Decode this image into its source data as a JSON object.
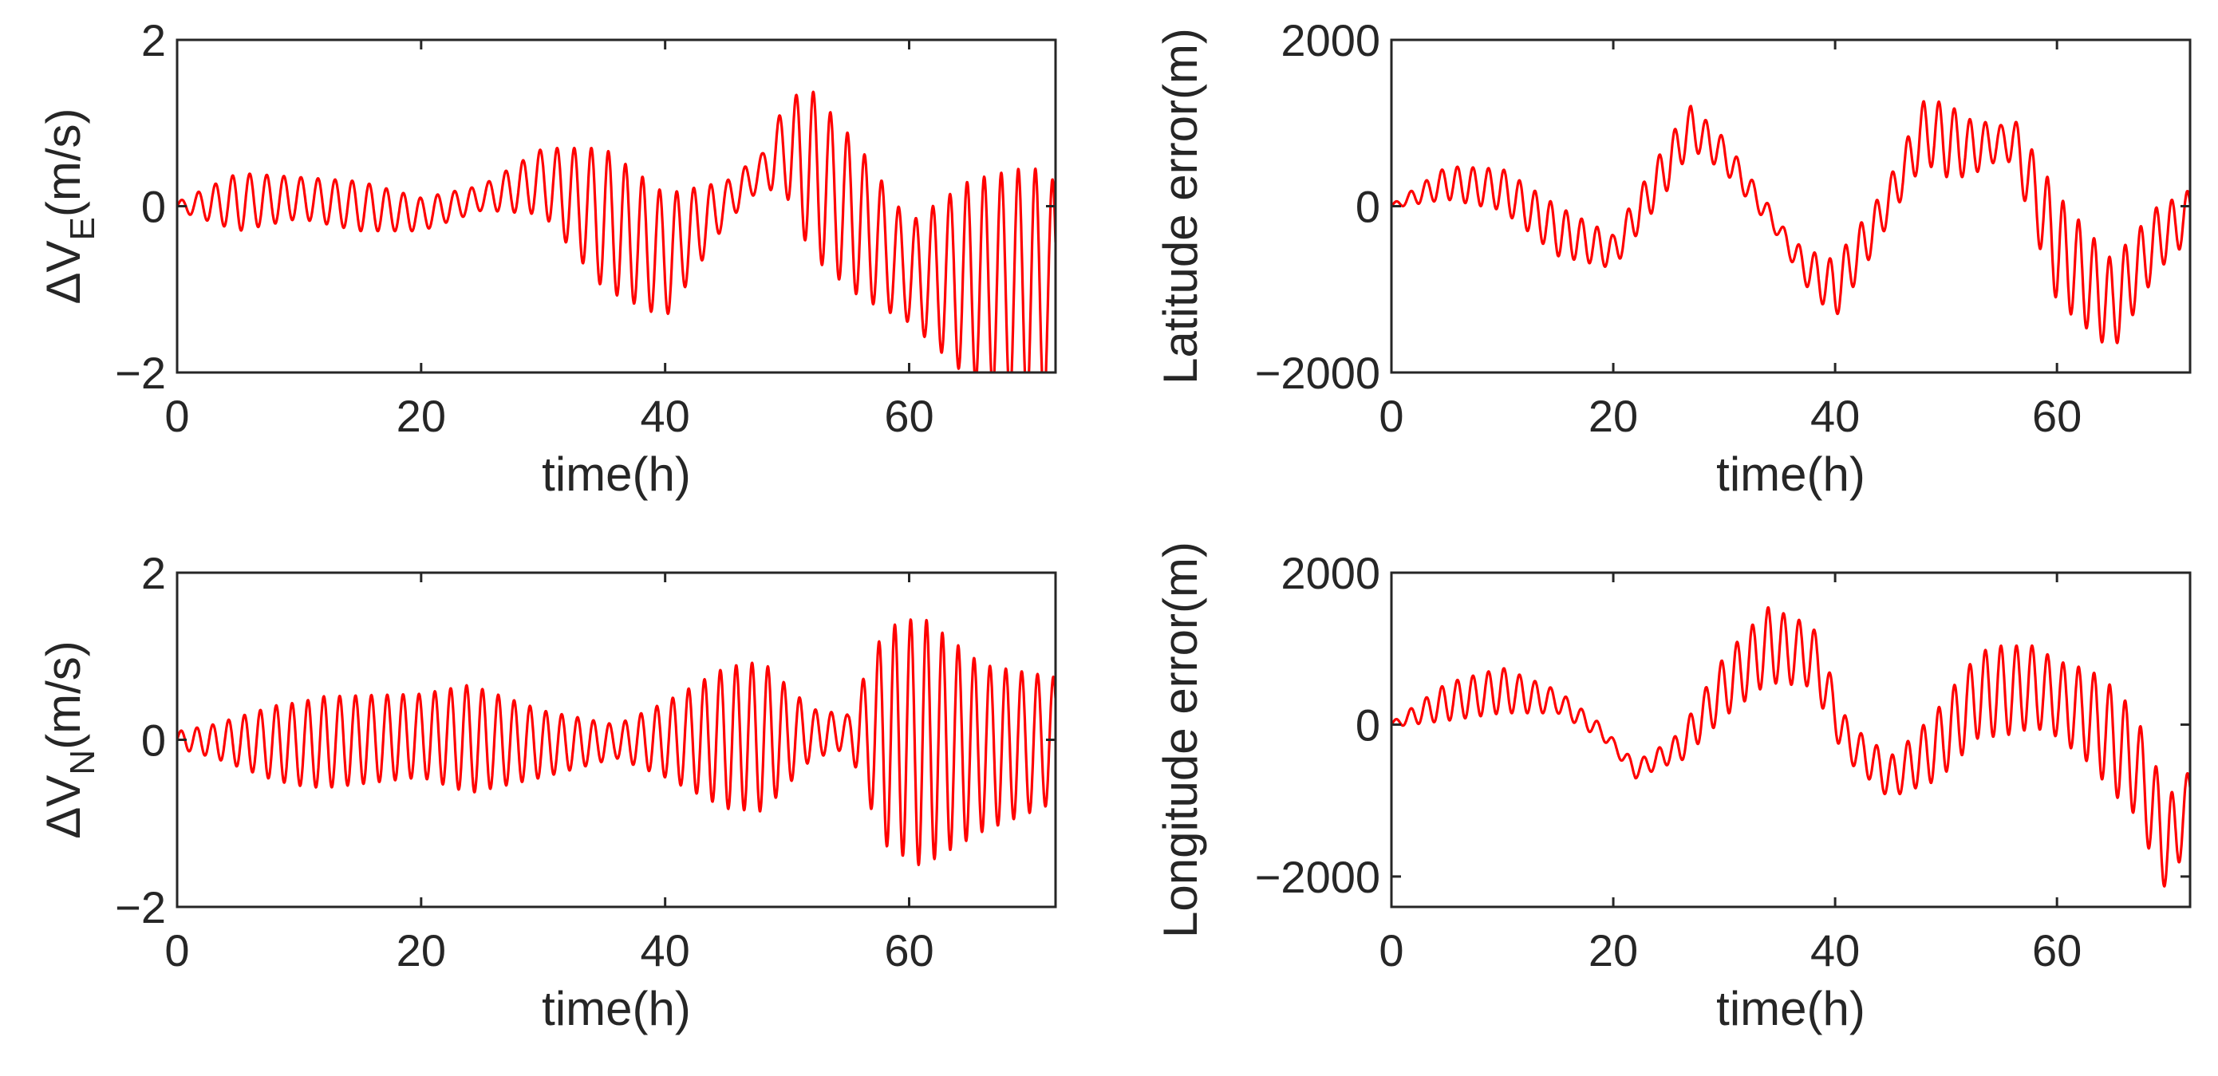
{
  "chart_data": [
    {
      "type": "line",
      "id": "dve",
      "xlabel": "time(h)",
      "ylabel": {
        "main": "ΔV",
        "sub": "E",
        "unit": "(m/s)"
      },
      "xlim": [
        0,
        72
      ],
      "ylim": [
        -2,
        2
      ],
      "xticks": [
        0,
        20,
        40,
        60
      ],
      "yticks": [
        -2,
        0,
        2
      ],
      "ytick_labels": [
        "−2",
        "0",
        "2"
      ],
      "color": "#ff0000",
      "series": [
        {
          "name": "ΔV_E",
          "x": [
            0,
            10,
            20,
            30,
            40,
            50,
            60,
            72
          ],
          "values": [
            0,
            0.1,
            -0.1,
            0.3,
            -0.6,
            0.7,
            -0.8,
            -1.0
          ]
        }
      ],
      "oscillation": {
        "period_h": 1.4,
        "envelope_x": [
          0,
          5,
          10,
          15,
          20,
          25,
          30,
          35,
          40,
          45,
          48,
          52,
          56,
          60,
          65,
          70,
          72
        ],
        "envelope_amp": [
          0.05,
          0.35,
          0.25,
          0.3,
          0.2,
          0.15,
          0.4,
          0.85,
          0.75,
          0.25,
          0.2,
          1.0,
          0.9,
          0.6,
          1.2,
          1.45,
          1.3
        ]
      }
    },
    {
      "type": "line",
      "id": "lat",
      "xlabel": "time(h)",
      "ylabel": {
        "main": "Latitude error(m)"
      },
      "xlim": [
        0,
        72
      ],
      "ylim": [
        -2000,
        2000
      ],
      "xticks": [
        0,
        20,
        40,
        60
      ],
      "yticks": [
        -2000,
        0,
        2000
      ],
      "ytick_labels": [
        "−2000",
        "0",
        "2000"
      ],
      "color": "#ff0000",
      "series": [
        {
          "name": "Latitude error",
          "x": [
            0,
            5,
            10,
            15,
            20,
            24,
            27,
            30,
            34,
            37,
            40,
            44,
            48,
            52,
            56,
            60,
            65,
            69,
            72
          ],
          "values": [
            0,
            280,
            200,
            -300,
            -550,
            300,
            950,
            620,
            -100,
            -700,
            -1000,
            -150,
            900,
            700,
            800,
            -500,
            -1200,
            -400,
            -100
          ]
        }
      ],
      "oscillation": {
        "period_h": 1.4,
        "envelope_x": [
          0,
          5,
          10,
          15,
          20,
          25,
          30,
          35,
          40,
          45,
          50,
          55,
          60,
          65,
          70,
          72
        ],
        "envelope_amp": [
          20,
          200,
          250,
          300,
          200,
          300,
          200,
          100,
          350,
          250,
          450,
          200,
          650,
          550,
          350,
          300
        ]
      }
    },
    {
      "type": "line",
      "id": "dvn",
      "xlabel": "time(h)",
      "ylabel": {
        "main": "ΔV",
        "sub": "N",
        "unit": "(m/s)"
      },
      "xlim": [
        0,
        72
      ],
      "ylim": [
        -2,
        2
      ],
      "xticks": [
        0,
        20,
        40,
        60
      ],
      "yticks": [
        -2,
        0,
        2
      ],
      "ytick_labels": [
        "−2",
        "0",
        "2"
      ],
      "color": "#ff0000",
      "series": [
        {
          "name": "ΔV_N",
          "x": [
            0,
            10,
            20,
            30,
            40,
            50,
            55,
            60,
            66,
            72
          ],
          "values": [
            0,
            -0.05,
            0.05,
            -0.05,
            0,
            0.05,
            0.1,
            0,
            -0.1,
            0
          ]
        }
      ],
      "oscillation": {
        "period_h": 1.3,
        "envelope_x": [
          0,
          3,
          8,
          12,
          20,
          24,
          30,
          36,
          40,
          45,
          48,
          52,
          55,
          58,
          61,
          66,
          72
        ],
        "envelope_amp": [
          0.1,
          0.2,
          0.45,
          0.55,
          0.5,
          0.65,
          0.4,
          0.2,
          0.45,
          0.85,
          0.9,
          0.3,
          0.2,
          1.3,
          1.5,
          1.0,
          0.75
        ]
      }
    },
    {
      "type": "line",
      "id": "lon",
      "xlabel": "time(h)",
      "ylabel": {
        "main": "Longitude error(m)"
      },
      "xlim": [
        0,
        72
      ],
      "ylim": [
        -2400,
        2000
      ],
      "xticks": [
        0,
        20,
        40,
        60
      ],
      "yticks": [
        -2000,
        0,
        2000
      ],
      "ytick_labels": [
        "−2000",
        "0",
        "2000"
      ],
      "color": "#ff0000",
      "series": [
        {
          "name": "Longitude error",
          "x": [
            0,
            5,
            10,
            15,
            19,
            22,
            26,
            30,
            34,
            38,
            41,
            45,
            49,
            53,
            58,
            63,
            67,
            70,
            72
          ],
          "values": [
            0,
            300,
            450,
            300,
            -100,
            -600,
            -300,
            500,
            1050,
            900,
            -200,
            -700,
            -300,
            400,
            500,
            100,
            -500,
            -1600,
            -1000
          ]
        }
      ],
      "oscillation": {
        "period_h": 1.4,
        "envelope_x": [
          0,
          5,
          10,
          15,
          20,
          25,
          30,
          34,
          38,
          42,
          46,
          50,
          55,
          60,
          65,
          70,
          72
        ],
        "envelope_amp": [
          30,
          250,
          300,
          150,
          80,
          150,
          400,
          500,
          400,
          250,
          300,
          500,
          600,
          500,
          700,
          650,
          400
        ]
      }
    }
  ]
}
